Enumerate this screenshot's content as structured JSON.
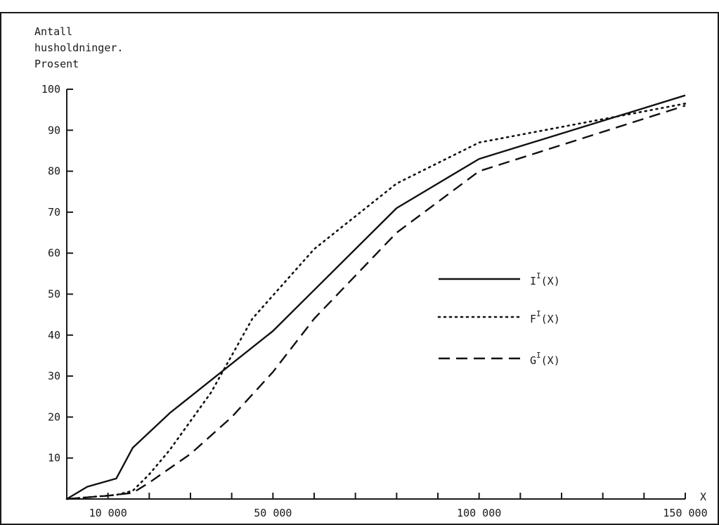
{
  "chart_data": {
    "type": "line",
    "ylabel_lines": [
      "Antall",
      "husholdninger.",
      "Prosent"
    ],
    "xlabel": "X",
    "x_domain": [
      0,
      150000
    ],
    "ylim": [
      0,
      100
    ],
    "y_ticks": [
      10,
      20,
      30,
      40,
      50,
      60,
      70,
      80,
      90,
      100
    ],
    "x_tick_values": [
      10000,
      20000,
      30000,
      40000,
      50000,
      60000,
      70000,
      80000,
      90000,
      100000,
      110000,
      120000,
      130000,
      140000,
      150000
    ],
    "x_tick_labels": [
      {
        "value": 10000,
        "label": "10 000"
      },
      {
        "value": 50000,
        "label": "50 000"
      },
      {
        "value": 100000,
        "label": "100 000"
      },
      {
        "value": 150000,
        "label": "150 000"
      }
    ],
    "grid": false,
    "legend_position": "right-middle",
    "series": [
      {
        "key": "I",
        "legend_main": "I",
        "legend_sup": "I",
        "legend_suffix": "(X)",
        "style": "solid",
        "color": "#111111",
        "points": [
          [
            0,
            0
          ],
          [
            5000,
            3
          ],
          [
            12000,
            5
          ],
          [
            16000,
            12.5
          ],
          [
            25000,
            21
          ],
          [
            35000,
            29
          ],
          [
            50000,
            41
          ],
          [
            60000,
            51
          ],
          [
            80000,
            71
          ],
          [
            100000,
            83
          ],
          [
            150000,
            98.5
          ]
        ]
      },
      {
        "key": "F",
        "legend_main": "F",
        "legend_sup": "I",
        "legend_suffix": "(X)",
        "style": "dotted",
        "color": "#111111",
        "points": [
          [
            0,
            0
          ],
          [
            12000,
            1
          ],
          [
            16000,
            2
          ],
          [
            20000,
            6
          ],
          [
            25000,
            12
          ],
          [
            35000,
            26
          ],
          [
            45000,
            44
          ],
          [
            60000,
            61
          ],
          [
            80000,
            77
          ],
          [
            100000,
            87
          ],
          [
            150000,
            96.5
          ]
        ]
      },
      {
        "key": "G",
        "legend_main": "G",
        "legend_sup": "I",
        "legend_suffix": "(X)",
        "style": "dashed",
        "color": "#111111",
        "points": [
          [
            0,
            0
          ],
          [
            10000,
            0.8
          ],
          [
            16000,
            1.5
          ],
          [
            20000,
            4
          ],
          [
            30000,
            11
          ],
          [
            40000,
            20
          ],
          [
            50000,
            31
          ],
          [
            60000,
            44
          ],
          [
            80000,
            65
          ],
          [
            100000,
            80
          ],
          [
            150000,
            96
          ]
        ]
      }
    ]
  }
}
